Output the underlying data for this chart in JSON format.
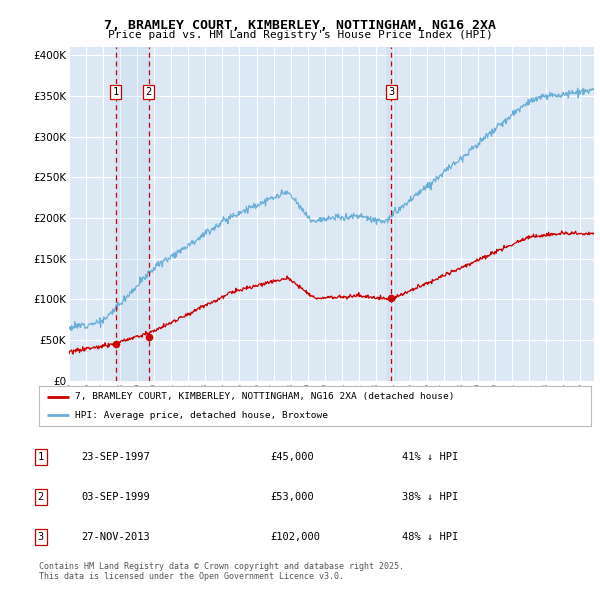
{
  "title1": "7, BRAMLEY COURT, KIMBERLEY, NOTTINGHAM, NG16 2XA",
  "title2": "Price paid vs. HM Land Registry's House Price Index (HPI)",
  "bg_color": "#dce9f5",
  "grid_color": "#ffffff",
  "sale_years_float": [
    1997.728,
    1999.671,
    2013.903
  ],
  "sale_prices": [
    45000,
    53000,
    102000
  ],
  "sale_labels": [
    "1",
    "2",
    "3"
  ],
  "legend_house": "7, BRAMLEY COURT, KIMBERLEY, NOTTINGHAM, NG16 2XA (detached house)",
  "legend_hpi": "HPI: Average price, detached house, Broxtowe",
  "table_rows": [
    {
      "num": "1",
      "date": "23-SEP-1997",
      "price": "£45,000",
      "hpi": "41% ↓ HPI"
    },
    {
      "num": "2",
      "date": "03-SEP-1999",
      "price": "£53,000",
      "hpi": "38% ↓ HPI"
    },
    {
      "num": "3",
      "date": "27-NOV-2013",
      "price": "£102,000",
      "hpi": "48% ↓ HPI"
    }
  ],
  "footer": "Contains HM Land Registry data © Crown copyright and database right 2025.\nThis data is licensed under the Open Government Licence v3.0.",
  "red_color": "#cc0000",
  "blue_color": "#6baed6",
  "ylim": [
    0,
    410000
  ],
  "yticks": [
    0,
    50000,
    100000,
    150000,
    200000,
    250000,
    300000,
    350000,
    400000
  ],
  "xlim": [
    1995.0,
    2025.8
  ]
}
